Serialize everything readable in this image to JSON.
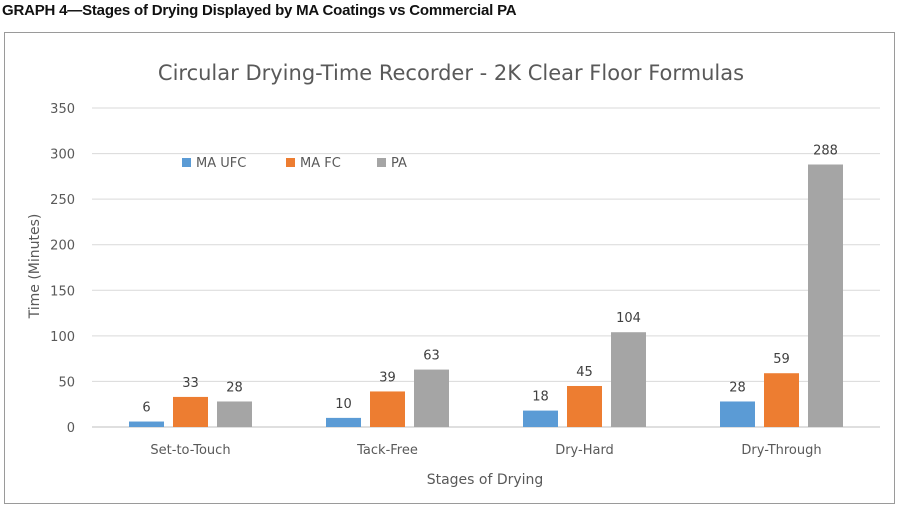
{
  "caption": "GRAPH 4—Stages of Drying Displayed by MA Coatings vs Commercial PA",
  "chart_data": {
    "type": "bar",
    "title": "Circular Drying-Time Recorder - 2K Clear Floor Formulas",
    "xlabel": "Stages of Drying",
    "ylabel": "Time (Minutes)",
    "ylim": [
      0,
      350
    ],
    "yticks": [
      0,
      50,
      100,
      150,
      200,
      250,
      300,
      350
    ],
    "grid": true,
    "legend_position": "upper-left",
    "categories": [
      "Set-to-Touch",
      "Tack-Free",
      "Dry-Hard",
      "Dry-Through"
    ],
    "series": [
      {
        "name": "MA UFC",
        "color": "#5b9bd5",
        "values": [
          6,
          10,
          18,
          28
        ]
      },
      {
        "name": "MA FC",
        "color": "#ed7d31",
        "values": [
          33,
          39,
          45,
          59
        ]
      },
      {
        "name": "PA",
        "color": "#a5a5a5",
        "values": [
          28,
          63,
          104,
          288
        ]
      }
    ]
  }
}
